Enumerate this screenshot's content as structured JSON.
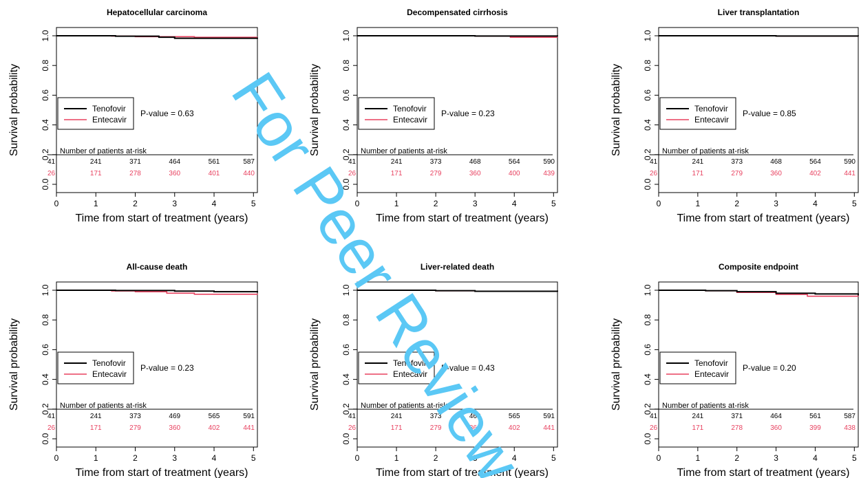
{
  "watermark_text": "For Peer Review",
  "colors": {
    "tenofovir": "#000000",
    "entecavir": "#e8415f",
    "watermark": "#5bc8f5"
  },
  "chart_data": [
    {
      "type": "line",
      "title": "Hepatocellular carcinoma",
      "xlabel": "Time from start of treatment (years)",
      "ylabel": "Survival probability",
      "xlim": [
        0,
        5.1
      ],
      "ylim": [
        0,
        1.0
      ],
      "xticks": [
        "0",
        "1",
        "2",
        "3",
        "4",
        "5"
      ],
      "yticks": [
        "0.0",
        "0.2",
        "0.4",
        "0.6",
        "0.8",
        "1.0"
      ],
      "legend_position": "middle-left",
      "p_value_label": "P-value = 0.63",
      "risk_table_title": "Number of patients at-risk",
      "risk_table": {
        "tenofovir": [
          "41",
          "241",
          "371",
          "464",
          "561",
          "587"
        ],
        "entecavir": [
          "26",
          "171",
          "278",
          "360",
          "401",
          "440"
        ]
      },
      "series": [
        {
          "name": "Tenofovir",
          "x": [
            0,
            1.5,
            2.6,
            3.0,
            5.1
          ],
          "y": [
            1.0,
            0.997,
            0.99,
            0.983,
            0.98
          ]
        },
        {
          "name": "Entecavir",
          "x": [
            0,
            1.4,
            2.0,
            3.5,
            5.1
          ],
          "y": [
            1.0,
            0.998,
            0.994,
            0.99,
            0.99
          ]
        }
      ]
    },
    {
      "type": "line",
      "title": "Decompensated cirrhosis",
      "xlabel": "Time from start of treatment (years)",
      "ylabel": "Survival probability",
      "xlim": [
        0,
        5.1
      ],
      "ylim": [
        0,
        1.0
      ],
      "xticks": [
        "0",
        "1",
        "2",
        "3",
        "4",
        "5"
      ],
      "yticks": [
        "0.0",
        "0.2",
        "0.4",
        "0.6",
        "0.8",
        "1.0"
      ],
      "legend_position": "middle-left",
      "p_value_label": "P-value = 0.23",
      "risk_table_title": "Number of patients at-risk",
      "risk_table": {
        "tenofovir": [
          "41",
          "241",
          "373",
          "468",
          "564",
          "590"
        ],
        "entecavir": [
          "26",
          "171",
          "279",
          "360",
          "400",
          "439"
        ]
      },
      "series": [
        {
          "name": "Tenofovir",
          "x": [
            0,
            3.0,
            5.1
          ],
          "y": [
            1.0,
            0.998,
            0.996
          ]
        },
        {
          "name": "Entecavir",
          "x": [
            0,
            3.0,
            3.9,
            5.1
          ],
          "y": [
            1.0,
            0.998,
            0.99,
            0.99
          ]
        }
      ]
    },
    {
      "type": "line",
      "title": "Liver transplantation",
      "xlabel": "Time from start of treatment (years)",
      "ylabel": "Survival probability",
      "xlim": [
        0,
        5.1
      ],
      "ylim": [
        0,
        1.0
      ],
      "xticks": [
        "0",
        "1",
        "2",
        "3",
        "4",
        "5"
      ],
      "yticks": [
        "0.0",
        "0.2",
        "0.4",
        "0.6",
        "0.8",
        "1.0"
      ],
      "legend_position": "middle-left",
      "p_value_label": "P-value = 0.85",
      "risk_table_title": "Number of patients at-risk",
      "risk_table": {
        "tenofovir": [
          "41",
          "241",
          "373",
          "468",
          "564",
          "590"
        ],
        "entecavir": [
          "26",
          "171",
          "279",
          "360",
          "402",
          "441"
        ]
      },
      "series": [
        {
          "name": "Tenofovir",
          "x": [
            0,
            3.0,
            5.1
          ],
          "y": [
            1.0,
            0.998,
            0.997
          ]
        },
        {
          "name": "Entecavir",
          "x": [
            0,
            3.0,
            5.1
          ],
          "y": [
            1.0,
            0.998,
            0.998
          ]
        }
      ]
    },
    {
      "type": "line",
      "title": "All-cause death",
      "xlabel": "Time from start of treatment (years)",
      "ylabel": "Survival probability",
      "xlim": [
        0,
        5.1
      ],
      "ylim": [
        0,
        1.0
      ],
      "xticks": [
        "0",
        "1",
        "2",
        "3",
        "4",
        "5"
      ],
      "yticks": [
        "0.0",
        "0.2",
        "0.4",
        "0.6",
        "0.8",
        "1.0"
      ],
      "legend_position": "middle-left",
      "p_value_label": "P-value = 0.23",
      "risk_table_title": "Number of patients at-risk",
      "risk_table": {
        "tenofovir": [
          "41",
          "241",
          "373",
          "469",
          "565",
          "591"
        ],
        "entecavir": [
          "26",
          "171",
          "279",
          "360",
          "402",
          "441"
        ]
      },
      "series": [
        {
          "name": "Tenofovir",
          "x": [
            0,
            1.5,
            3.0,
            4.0,
            5.1
          ],
          "y": [
            1.0,
            0.998,
            0.994,
            0.99,
            0.985
          ]
        },
        {
          "name": "Entecavir",
          "x": [
            0,
            1.4,
            2.0,
            2.8,
            3.5,
            5.1
          ],
          "y": [
            1.0,
            0.995,
            0.99,
            0.98,
            0.973,
            0.97
          ]
        }
      ]
    },
    {
      "type": "line",
      "title": "Liver-related death",
      "xlabel": "Time from start of treatment (years)",
      "ylabel": "Survival probability",
      "xlim": [
        0,
        5.1
      ],
      "ylim": [
        0,
        1.0
      ],
      "xticks": [
        "0",
        "1",
        "2",
        "3",
        "4",
        "5"
      ],
      "yticks": [
        "0.0",
        "0.2",
        "0.4",
        "0.6",
        "0.8",
        "1.0"
      ],
      "legend_position": "middle-left",
      "p_value_label": "P-value = 0.43",
      "risk_table_title": "Number of patients at-risk",
      "risk_table": {
        "tenofovir": [
          "41",
          "241",
          "373",
          "469",
          "565",
          "591"
        ],
        "entecavir": [
          "26",
          "171",
          "279",
          "360",
          "402",
          "441"
        ]
      },
      "series": [
        {
          "name": "Tenofovir",
          "x": [
            0,
            2.0,
            3.0,
            5.1
          ],
          "y": [
            1.0,
            0.997,
            0.993,
            0.99
          ]
        },
        {
          "name": "Entecavir",
          "x": [
            0,
            2.0,
            3.0,
            5.1
          ],
          "y": [
            1.0,
            0.996,
            0.992,
            0.99
          ]
        }
      ]
    },
    {
      "type": "line",
      "title": "Composite endpoint",
      "xlabel": "Time from start of treatment (years)",
      "ylabel": "Survival probability",
      "xlim": [
        0,
        5.1
      ],
      "ylim": [
        0,
        1.0
      ],
      "xticks": [
        "0",
        "1",
        "2",
        "3",
        "4",
        "5"
      ],
      "yticks": [
        "0.0",
        "0.2",
        "0.4",
        "0.6",
        "0.8",
        "1.0"
      ],
      "legend_position": "middle-left",
      "p_value_label": "P-value = 0.20",
      "risk_table_title": "Number of patients at-risk",
      "risk_table": {
        "tenofovir": [
          "41",
          "241",
          "371",
          "464",
          "561",
          "587"
        ],
        "entecavir": [
          "26",
          "171",
          "278",
          "360",
          "399",
          "438"
        ]
      },
      "series": [
        {
          "name": "Tenofovir",
          "x": [
            0,
            1.2,
            2.0,
            3.0,
            4.0,
            5.1
          ],
          "y": [
            1.0,
            0.997,
            0.99,
            0.98,
            0.975,
            0.965
          ]
        },
        {
          "name": "Entecavir",
          "x": [
            0,
            1.2,
            2.0,
            3.0,
            3.8,
            5.1
          ],
          "y": [
            1.0,
            0.996,
            0.985,
            0.972,
            0.96,
            0.958
          ]
        }
      ]
    }
  ]
}
